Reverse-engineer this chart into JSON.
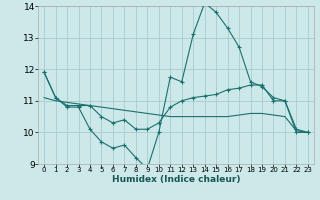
{
  "title": "",
  "xlabel": "Humidex (Indice chaleur)",
  "bg_color": "#cce8e8",
  "grid_color": "#aacccc",
  "line_color": "#1a7070",
  "xlim": [
    -0.5,
    23.5
  ],
  "ylim": [
    9,
    14
  ],
  "yticks": [
    9,
    10,
    11,
    12,
    13,
    14
  ],
  "xticks": [
    0,
    1,
    2,
    3,
    4,
    5,
    6,
    7,
    8,
    9,
    10,
    11,
    12,
    13,
    14,
    15,
    16,
    17,
    18,
    19,
    20,
    21,
    22,
    23
  ],
  "line1_x": [
    0,
    1,
    2,
    3,
    4,
    5,
    6,
    7,
    8,
    9,
    10,
    11,
    12,
    13,
    14,
    15,
    16,
    17,
    18,
    19,
    20,
    21,
    22,
    23
  ],
  "line1_y": [
    11.9,
    11.1,
    10.8,
    10.8,
    10.1,
    9.7,
    9.5,
    9.6,
    9.2,
    8.85,
    10.0,
    11.75,
    11.6,
    13.1,
    14.1,
    13.8,
    13.3,
    12.7,
    11.6,
    11.45,
    11.1,
    11.0,
    10.1,
    10.0
  ],
  "line2_x": [
    0,
    1,
    2,
    3,
    4,
    5,
    6,
    7,
    8,
    9,
    10,
    11,
    12,
    13,
    14,
    15,
    16,
    17,
    18,
    19,
    20,
    21,
    22,
    23
  ],
  "line2_y": [
    11.9,
    11.1,
    10.85,
    10.85,
    10.85,
    10.5,
    10.3,
    10.4,
    10.1,
    10.1,
    10.3,
    10.8,
    11.0,
    11.1,
    11.15,
    11.2,
    11.35,
    11.4,
    11.5,
    11.5,
    11.0,
    11.0,
    10.0,
    10.0
  ],
  "line3_x": [
    0,
    1,
    2,
    3,
    4,
    5,
    6,
    7,
    8,
    9,
    10,
    11,
    12,
    13,
    14,
    15,
    16,
    17,
    18,
    19,
    20,
    21,
    22,
    23
  ],
  "line3_y": [
    11.1,
    11.0,
    10.95,
    10.9,
    10.85,
    10.8,
    10.75,
    10.7,
    10.65,
    10.6,
    10.55,
    10.5,
    10.5,
    10.5,
    10.5,
    10.5,
    10.5,
    10.55,
    10.6,
    10.6,
    10.55,
    10.5,
    10.05,
    10.0
  ]
}
